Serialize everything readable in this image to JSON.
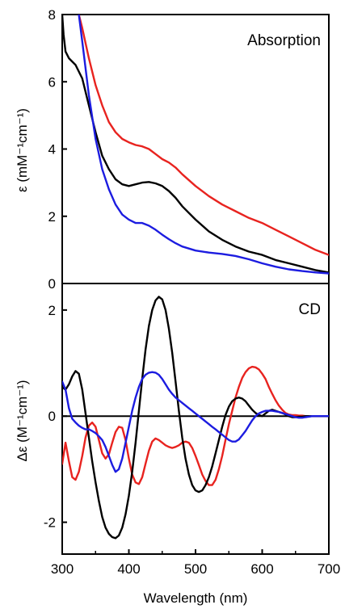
{
  "chart_data": [
    {
      "panel": "top",
      "type": "line",
      "title": "Absorption",
      "ylabel": "ε (mM⁻¹cm⁻¹)",
      "xlabel": "",
      "xlim": [
        300,
        700
      ],
      "ylim": [
        0,
        8
      ],
      "yticks": [
        "0",
        "2",
        "4",
        "6",
        "8"
      ],
      "grid": false,
      "series": [
        {
          "color": "#e8231f",
          "x": [
            325,
            330,
            340,
            350,
            360,
            370,
            380,
            390,
            400,
            410,
            420,
            430,
            440,
            450,
            460,
            470,
            480,
            500,
            520,
            540,
            560,
            580,
            600,
            620,
            640,
            660,
            680,
            700
          ],
          "y": [
            8.0,
            7.6,
            6.7,
            5.9,
            5.3,
            4.8,
            4.5,
            4.3,
            4.2,
            4.12,
            4.08,
            4.0,
            3.85,
            3.7,
            3.6,
            3.45,
            3.25,
            2.9,
            2.6,
            2.35,
            2.15,
            1.95,
            1.8,
            1.6,
            1.4,
            1.2,
            1.0,
            0.85
          ]
        },
        {
          "color": "#000000",
          "x": [
            300,
            302,
            305,
            310,
            320,
            330,
            340,
            350,
            360,
            370,
            380,
            390,
            400,
            410,
            420,
            430,
            440,
            450,
            460,
            470,
            480,
            500,
            520,
            540,
            560,
            580,
            600,
            620,
            640,
            660,
            680,
            700
          ],
          "y": [
            8.0,
            7.4,
            6.9,
            6.7,
            6.5,
            6.1,
            5.3,
            4.5,
            3.8,
            3.4,
            3.1,
            2.95,
            2.9,
            2.95,
            3.0,
            3.02,
            2.98,
            2.9,
            2.75,
            2.55,
            2.3,
            1.9,
            1.55,
            1.3,
            1.1,
            0.95,
            0.85,
            0.7,
            0.6,
            0.5,
            0.4,
            0.33
          ]
        },
        {
          "color": "#1c1ce0",
          "x": [
            325,
            330,
            340,
            350,
            360,
            370,
            380,
            390,
            400,
            410,
            420,
            430,
            440,
            450,
            460,
            470,
            480,
            500,
            520,
            540,
            560,
            580,
            600,
            620,
            640,
            660,
            680,
            700
          ],
          "y": [
            8.0,
            7.2,
            5.6,
            4.3,
            3.4,
            2.8,
            2.35,
            2.05,
            1.9,
            1.8,
            1.8,
            1.72,
            1.6,
            1.45,
            1.32,
            1.2,
            1.1,
            0.98,
            0.92,
            0.88,
            0.82,
            0.72,
            0.6,
            0.5,
            0.42,
            0.37,
            0.33,
            0.3
          ]
        }
      ]
    },
    {
      "panel": "bottom",
      "type": "line",
      "title": "CD",
      "ylabel": "Δε (M⁻¹cm⁻¹)",
      "xlabel": "Wavelength (nm)",
      "xlim": [
        300,
        700
      ],
      "ylim": [
        -2.6,
        2.5
      ],
      "xticks": [
        "300",
        "400",
        "500",
        "600",
        "700"
      ],
      "yticks": [
        "-2",
        "0",
        "2"
      ],
      "zero_line": true,
      "grid": false,
      "series": [
        {
          "color": "#e8231f",
          "x": [
            300,
            305,
            310,
            315,
            320,
            325,
            330,
            335,
            340,
            345,
            350,
            355,
            360,
            365,
            370,
            375,
            380,
            385,
            390,
            395,
            400,
            405,
            410,
            415,
            420,
            425,
            430,
            435,
            440,
            445,
            450,
            455,
            460,
            465,
            470,
            475,
            480,
            485,
            490,
            495,
            500,
            505,
            510,
            515,
            520,
            525,
            530,
            535,
            540,
            545,
            550,
            555,
            560,
            565,
            570,
            575,
            580,
            585,
            590,
            595,
            600,
            605,
            610,
            615,
            620,
            625,
            630,
            635,
            640,
            645,
            650,
            655,
            660,
            665,
            670,
            675,
            680,
            685,
            690,
            695,
            700
          ],
          "y": [
            -0.9,
            -0.5,
            -0.85,
            -1.15,
            -1.2,
            -1.05,
            -0.75,
            -0.4,
            -0.18,
            -0.12,
            -0.2,
            -0.45,
            -0.7,
            -0.8,
            -0.72,
            -0.5,
            -0.3,
            -0.2,
            -0.22,
            -0.45,
            -0.8,
            -1.1,
            -1.25,
            -1.28,
            -1.15,
            -0.9,
            -0.65,
            -0.48,
            -0.42,
            -0.45,
            -0.5,
            -0.55,
            -0.58,
            -0.6,
            -0.58,
            -0.55,
            -0.5,
            -0.48,
            -0.5,
            -0.6,
            -0.75,
            -0.92,
            -1.1,
            -1.22,
            -1.3,
            -1.3,
            -1.2,
            -1.0,
            -0.75,
            -0.45,
            -0.15,
            0.1,
            0.35,
            0.55,
            0.72,
            0.83,
            0.9,
            0.93,
            0.92,
            0.88,
            0.8,
            0.7,
            0.55,
            0.42,
            0.3,
            0.2,
            0.12,
            0.06,
            0.03,
            0.02,
            0.02,
            0.01,
            0.01,
            0.0,
            0.0,
            0.0,
            0.0,
            0.0,
            0.0,
            0.0,
            0.0
          ]
        },
        {
          "color": "#000000",
          "x": [
            300,
            305,
            310,
            315,
            320,
            325,
            330,
            335,
            340,
            345,
            350,
            355,
            360,
            365,
            370,
            375,
            380,
            385,
            390,
            395,
            400,
            405,
            410,
            415,
            420,
            425,
            430,
            435,
            440,
            445,
            450,
            455,
            460,
            465,
            470,
            475,
            480,
            485,
            490,
            495,
            500,
            505,
            510,
            515,
            520,
            525,
            530,
            535,
            540,
            545,
            550,
            555,
            560,
            565,
            570,
            575,
            580,
            585,
            590,
            595,
            600,
            605,
            610,
            615,
            620,
            625,
            630,
            635,
            640,
            645,
            650,
            655,
            660,
            665,
            670,
            675,
            680,
            685,
            690,
            695,
            700
          ],
          "y": [
            0.55,
            0.5,
            0.6,
            0.75,
            0.85,
            0.8,
            0.5,
            0.05,
            -0.4,
            -0.85,
            -1.25,
            -1.6,
            -1.9,
            -2.1,
            -2.22,
            -2.28,
            -2.3,
            -2.25,
            -2.1,
            -1.85,
            -1.5,
            -1.05,
            -0.5,
            0.1,
            0.7,
            1.25,
            1.7,
            2.0,
            2.18,
            2.25,
            2.2,
            2.0,
            1.65,
            1.2,
            0.65,
            0.1,
            -0.4,
            -0.8,
            -1.1,
            -1.3,
            -1.4,
            -1.43,
            -1.4,
            -1.3,
            -1.15,
            -0.95,
            -0.7,
            -0.45,
            -0.2,
            0.02,
            0.18,
            0.28,
            0.33,
            0.35,
            0.33,
            0.28,
            0.2,
            0.12,
            0.06,
            0.02,
            0.0,
            0.05,
            0.1,
            0.12,
            0.1,
            0.08,
            0.06,
            0.03,
            0.0,
            -0.02,
            -0.02,
            -0.01,
            -0.01,
            0.0,
            0.0,
            0.0,
            0.0,
            0.0,
            0.0,
            0.0,
            0.0
          ]
        },
        {
          "color": "#1c1ce0",
          "x": [
            300,
            305,
            310,
            315,
            320,
            325,
            330,
            335,
            340,
            345,
            350,
            355,
            360,
            365,
            370,
            375,
            380,
            385,
            390,
            395,
            400,
            405,
            410,
            415,
            420,
            425,
            430,
            435,
            440,
            445,
            450,
            455,
            460,
            465,
            470,
            475,
            480,
            485,
            490,
            495,
            500,
            505,
            510,
            515,
            520,
            525,
            530,
            535,
            540,
            545,
            550,
            555,
            560,
            565,
            570,
            575,
            580,
            585,
            590,
            595,
            600,
            605,
            610,
            615,
            620,
            625,
            630,
            635,
            640,
            645,
            650,
            655,
            660,
            665,
            670,
            675,
            680,
            685,
            690,
            695,
            700
          ],
          "y": [
            0.65,
            0.5,
            0.15,
            -0.05,
            -0.12,
            -0.18,
            -0.22,
            -0.25,
            -0.25,
            -0.28,
            -0.32,
            -0.38,
            -0.45,
            -0.58,
            -0.75,
            -0.92,
            -1.05,
            -1.0,
            -0.8,
            -0.5,
            -0.2,
            0.1,
            0.35,
            0.55,
            0.7,
            0.78,
            0.82,
            0.83,
            0.82,
            0.78,
            0.7,
            0.6,
            0.5,
            0.42,
            0.35,
            0.3,
            0.25,
            0.2,
            0.15,
            0.1,
            0.05,
            0.0,
            -0.05,
            -0.1,
            -0.15,
            -0.2,
            -0.25,
            -0.3,
            -0.35,
            -0.4,
            -0.45,
            -0.48,
            -0.48,
            -0.44,
            -0.36,
            -0.28,
            -0.18,
            -0.08,
            0.0,
            0.05,
            0.08,
            0.1,
            0.1,
            0.1,
            0.09,
            0.08,
            0.06,
            0.04,
            0.02,
            0.0,
            -0.02,
            -0.03,
            -0.03,
            -0.02,
            -0.01,
            0.0,
            0.0,
            0.0,
            0.0,
            0.0,
            0.0
          ]
        }
      ]
    }
  ]
}
